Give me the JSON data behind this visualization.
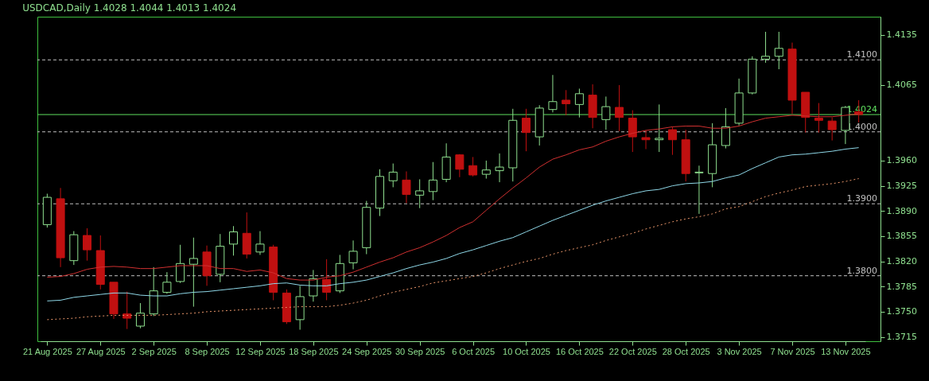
{
  "chart_data": {
    "type": "candlestick",
    "title": "USDCAD,Daily 1.4028 1.4044 1.4013 1.4024",
    "categories": [
      "21 Aug 2025",
      null,
      null,
      null,
      "27 Aug 2025",
      null,
      null,
      null,
      "2 Sep 2025",
      null,
      null,
      null,
      "8 Sep 2025",
      null,
      null,
      null,
      "12 Sep 2025",
      null,
      null,
      null,
      "18 Sep 2025",
      null,
      null,
      null,
      "24 Sep 2025",
      null,
      null,
      null,
      "30 Sep 2025",
      null,
      null,
      null,
      "6 Oct 2025",
      null,
      null,
      null,
      "10 Oct 2025",
      null,
      null,
      null,
      "16 Oct 2025",
      null,
      null,
      null,
      "22 Oct 2025",
      null,
      null,
      null,
      "28 Oct 2025",
      null,
      null,
      null,
      "3 Nov 2025",
      null,
      null,
      null,
      "7 Nov 2025",
      null,
      null,
      null,
      "13 Nov 2025",
      null
    ],
    "ohlc": [
      [
        1.3871,
        1.3914,
        1.3867,
        1.3909
      ],
      [
        1.3907,
        1.3922,
        1.3812,
        1.3825
      ],
      [
        1.3821,
        1.3862,
        1.3815,
        1.3857
      ],
      [
        1.3856,
        1.3866,
        1.3821,
        1.3836
      ],
      [
        1.3835,
        1.3856,
        1.3781,
        1.3788
      ],
      [
        1.3791,
        1.3791,
        1.374,
        1.3747
      ],
      [
        1.3747,
        1.3778,
        1.3726,
        1.3741
      ],
      [
        1.373,
        1.3762,
        1.3727,
        1.3748
      ],
      [
        1.3747,
        1.3812,
        1.3744,
        1.3779
      ],
      [
        1.3777,
        1.3805,
        1.3775,
        1.3791
      ],
      [
        1.3792,
        1.3843,
        1.379,
        1.3817
      ],
      [
        1.3816,
        1.3853,
        1.3757,
        1.3824
      ],
      [
        1.3833,
        1.3842,
        1.3786,
        1.38
      ],
      [
        1.3802,
        1.3858,
        1.3791,
        1.3841
      ],
      [
        1.3844,
        1.3869,
        1.3828,
        1.3861
      ],
      [
        1.3859,
        1.3888,
        1.3824,
        1.383
      ],
      [
        1.3833,
        1.3862,
        1.3829,
        1.3844
      ],
      [
        1.384,
        1.3843,
        1.3766,
        1.3777
      ],
      [
        1.3776,
        1.3781,
        1.3733,
        1.3736
      ],
      [
        1.3739,
        1.3786,
        1.3725,
        1.3771
      ],
      [
        1.3772,
        1.3808,
        1.3764,
        1.3796
      ],
      [
        1.3795,
        1.3823,
        1.3766,
        1.3777
      ],
      [
        1.3779,
        1.3829,
        1.3776,
        1.3817
      ],
      [
        1.3818,
        1.3849,
        1.3809,
        1.3834
      ],
      [
        1.3839,
        1.3904,
        1.383,
        1.3895
      ],
      [
        1.3894,
        1.3948,
        1.3883,
        1.3938
      ],
      [
        1.3932,
        1.3956,
        1.3923,
        1.3944
      ],
      [
        1.3933,
        1.3945,
        1.3901,
        1.3913
      ],
      [
        1.3912,
        1.3934,
        1.3894,
        1.3918
      ],
      [
        1.3917,
        1.3958,
        1.3905,
        1.3933
      ],
      [
        1.3934,
        1.3984,
        1.393,
        1.3965
      ],
      [
        1.3968,
        1.3969,
        1.3937,
        1.3948
      ],
      [
        1.3953,
        1.3965,
        1.3938,
        1.394
      ],
      [
        1.3941,
        1.396,
        1.3935,
        1.3947
      ],
      [
        1.3946,
        1.397,
        1.393,
        1.3951
      ],
      [
        1.395,
        1.4032,
        1.3931,
        1.4016
      ],
      [
        1.4019,
        1.4032,
        1.3973,
        1.3999
      ],
      [
        1.3993,
        1.4037,
        1.3981,
        1.4033
      ],
      [
        1.4031,
        1.4079,
        1.4027,
        1.4042
      ],
      [
        1.4044,
        1.4058,
        1.4023,
        1.4039
      ],
      [
        1.4038,
        1.406,
        1.402,
        1.4053
      ],
      [
        1.4051,
        1.4066,
        1.4005,
        1.402
      ],
      [
        1.4017,
        1.4049,
        1.4003,
        1.4035
      ],
      [
        1.4034,
        1.4065,
        1.4001,
        1.402
      ],
      [
        1.4019,
        1.403,
        1.3972,
        1.3993
      ],
      [
        1.3992,
        1.4002,
        1.3976,
        1.3989
      ],
      [
        1.3989,
        1.4038,
        1.3972,
        1.3991
      ],
      [
        1.4003,
        1.4007,
        1.3968,
        1.3989
      ],
      [
        1.3989,
        1.4003,
        1.3931,
        1.3942
      ],
      [
        1.3943,
        1.3953,
        1.3886,
        1.3944
      ],
      [
        1.3942,
        1.4012,
        1.3923,
        1.3982
      ],
      [
        1.3981,
        1.4033,
        1.3977,
        1.4007
      ],
      [
        1.4012,
        1.4074,
        1.4009,
        1.4054
      ],
      [
        1.4054,
        1.4105,
        1.4052,
        1.4101
      ],
      [
        1.4101,
        1.4139,
        1.4096,
        1.4105
      ],
      [
        1.4105,
        1.4139,
        1.4087,
        1.4116
      ],
      [
        1.4115,
        1.4124,
        1.4025,
        1.4044
      ],
      [
        1.4055,
        1.4055,
        1.3999,
        1.402
      ],
      [
        1.4019,
        1.404,
        1.3999,
        1.4016
      ],
      [
        1.4015,
        1.402,
        1.3988,
        1.4003
      ],
      [
        1.4002,
        1.4036,
        1.3983,
        1.4034
      ],
      [
        1.4028,
        1.4044,
        1.4013,
        1.4024
      ]
    ],
    "series": [
      {
        "type": "line",
        "color": "#d03030",
        "values": [
          1.3798,
          1.3799,
          1.3803,
          1.3809,
          1.3812,
          1.3813,
          1.3812,
          1.381,
          1.381,
          1.3812,
          1.3814,
          1.3814,
          1.3814,
          1.381,
          1.381,
          1.3806,
          1.3808,
          1.3804,
          1.3796,
          1.3794,
          1.3794,
          1.3798,
          1.38,
          1.3805,
          1.3812,
          1.3819,
          1.3825,
          1.3833,
          1.3839,
          1.3847,
          1.3856,
          1.3867,
          1.3875,
          1.3891,
          1.3907,
          1.3922,
          1.3936,
          1.3951,
          1.3962,
          1.3968,
          1.3975,
          1.3979,
          1.3987,
          1.3993,
          1.3998,
          1.4002,
          1.4004,
          1.4007,
          1.4008,
          1.4008,
          1.4005,
          1.4005,
          1.4008,
          1.4014,
          1.4019,
          1.4021,
          1.4023,
          1.4022,
          1.4021,
          1.4021,
          1.4023,
          1.4025
        ]
      },
      {
        "type": "line",
        "color": "#8fd8e8",
        "values": [
          1.3765,
          1.3766,
          1.377,
          1.3772,
          1.3774,
          1.3776,
          1.3776,
          1.3773,
          1.3772,
          1.3772,
          1.3775,
          1.3777,
          1.3778,
          1.378,
          1.3782,
          1.3784,
          1.3786,
          1.3789,
          1.379,
          1.3787,
          1.3786,
          1.3786,
          1.3789,
          1.3791,
          1.3794,
          1.3799,
          1.3804,
          1.381,
          1.3815,
          1.3819,
          1.3824,
          1.3831,
          1.3836,
          1.3842,
          1.3848,
          1.3853,
          1.3861,
          1.3869,
          1.3877,
          1.3884,
          1.3891,
          1.3898,
          1.3904,
          1.3909,
          1.3914,
          1.3918,
          1.392,
          1.3925,
          1.3928,
          1.3929,
          1.3931,
          1.3936,
          1.394,
          1.3949,
          1.3957,
          1.3965,
          1.3968,
          1.3969,
          1.3971,
          1.3973,
          1.3976,
          1.3978
        ]
      },
      {
        "type": "line",
        "color": "#e8956a",
        "line_style": "dotted",
        "values": [
          1.3739,
          1.374,
          1.3741,
          1.3743,
          1.3744,
          1.3745,
          1.3745,
          1.3745,
          1.3745,
          1.3746,
          1.3747,
          1.3748,
          1.375,
          1.3751,
          1.3752,
          1.3753,
          1.3754,
          1.3755,
          1.3756,
          1.3757,
          1.3757,
          1.3757,
          1.3759,
          1.3762,
          1.3766,
          1.3772,
          1.3777,
          1.3781,
          1.3785,
          1.379,
          1.3793,
          1.3796,
          1.3799,
          1.3804,
          1.381,
          1.3815,
          1.382,
          1.3824,
          1.383,
          1.3835,
          1.3839,
          1.3843,
          1.3849,
          1.3854,
          1.3859,
          1.3865,
          1.387,
          1.3875,
          1.3879,
          1.3882,
          1.3886,
          1.3893,
          1.3896,
          1.3903,
          1.391,
          1.3915,
          1.3919,
          1.3924,
          1.3926,
          1.3928,
          1.3931,
          1.3935
        ]
      }
    ],
    "ylim": [
      1.3709,
      1.416
    ],
    "yticks": [
      1.4135,
      1.4065,
      {
        "value": 1.396,
        "label": "1.3960"
      },
      1.3925,
      {
        "value": 1.389,
        "label": "1.3890"
      },
      1.3855,
      {
        "value": 1.382,
        "label": "1.3820"
      },
      1.3785,
      {
        "value": 1.375,
        "label": "1.3750"
      },
      1.3715
    ],
    "ref_lines": [
      {
        "axis": "y",
        "value": 1.41,
        "label": "1.4100",
        "color": "#c0c0c0",
        "line_style": "dashed"
      },
      {
        "axis": "y",
        "value": 1.4,
        "label": "1.4000",
        "color": "#c0c0c0",
        "line_style": "dashed"
      },
      {
        "axis": "y",
        "value": 1.39,
        "label": "1.3900",
        "color": "#c0c0c0",
        "line_style": "dashed"
      },
      {
        "axis": "y",
        "value": 1.38,
        "label": "1.3800",
        "color": "#c0c0c0",
        "line_style": "dashed"
      },
      {
        "axis": "y",
        "value": 1.4024,
        "label": "1.4024",
        "color": "#5fe05f",
        "line_style": "solid"
      }
    ]
  }
}
